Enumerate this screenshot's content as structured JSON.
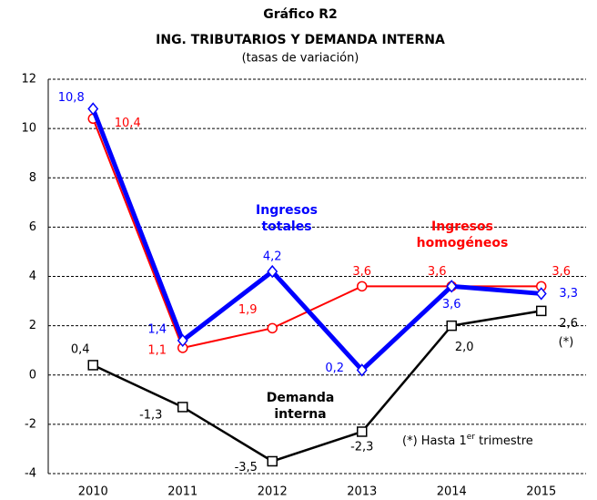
{
  "chart_data": {
    "type": "line",
    "title": "Gráfico R2",
    "subtitle": "ING. TRIBUTARIOS Y DEMANDA INTERNA",
    "note": "(tasas de variación)",
    "categories": [
      "2010",
      "2011",
      "2012",
      "2013",
      "2014",
      "2015"
    ],
    "series": [
      {
        "name": "Ingresos homogéneos",
        "color": "#ff0000",
        "marker": "circle",
        "values": [
          10.4,
          1.1,
          1.9,
          3.6,
          3.6,
          3.6
        ],
        "value_labels": [
          "10,4",
          "1,1",
          "1,9",
          "3,6",
          "3,6",
          "3,6"
        ]
      },
      {
        "name": "Ingresos totales",
        "color": "#0000ff",
        "marker": "diamond",
        "values": [
          10.8,
          1.4,
          4.2,
          0.2,
          3.6,
          3.3
        ],
        "value_labels": [
          "10,8",
          "1,4",
          "4,2",
          "0,2",
          "3,6",
          "3,3"
        ]
      },
      {
        "name": "Demanda interna",
        "color": "#000000",
        "marker": "square",
        "values": [
          0.4,
          -1.3,
          -3.5,
          -2.3,
          2.0,
          2.6
        ],
        "value_labels": [
          "0,4",
          "-1,3",
          "-3,5",
          "-2,3",
          "2,0",
          "2,6"
        ]
      }
    ],
    "asterisk": "(*)",
    "footnote": [
      "(*) Hasta 1",
      "er",
      " trimestre"
    ],
    "ylim": [
      -4,
      12
    ],
    "yticks": [
      -4,
      -2,
      0,
      2,
      4,
      6,
      8,
      10,
      12
    ],
    "grid": true
  }
}
